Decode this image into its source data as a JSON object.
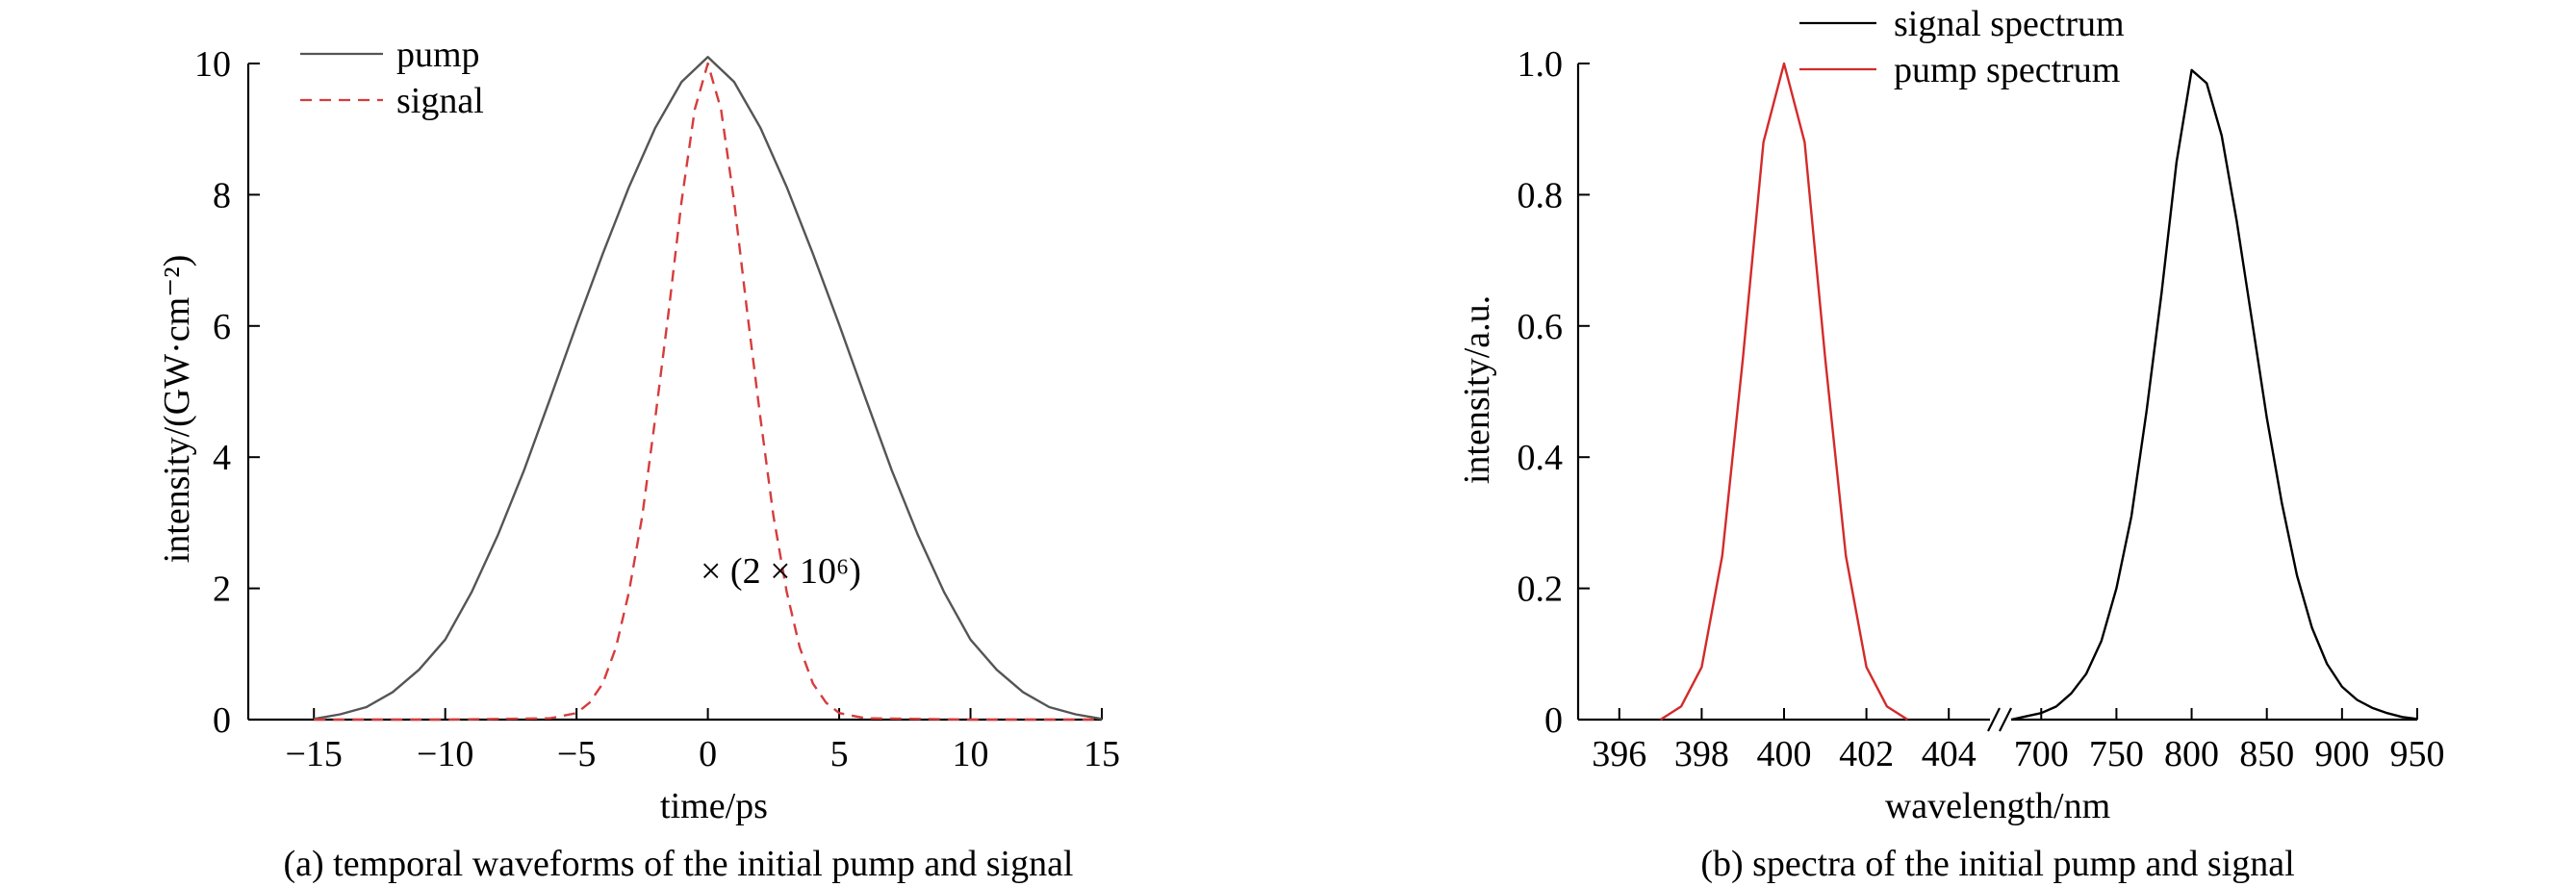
{
  "chart_data": [
    {
      "type": "line",
      "caption": "(a) temporal waveforms of the initial pump and signal",
      "xlabel": "time/ps",
      "ylabel": "intensity/(GW·cm⁻²)",
      "xlim": [
        -17.5,
        15
      ],
      "ylim": [
        0,
        10
      ],
      "xticks": [
        -15,
        -10,
        -5,
        0,
        5,
        10,
        15
      ],
      "xtick_labels": [
        "−15",
        "−10",
        "−5",
        "0",
        "5",
        "10",
        "15"
      ],
      "yticks": [
        0,
        2,
        4,
        6,
        8,
        10
      ],
      "ytick_labels": [
        "0",
        "2",
        "4",
        "6",
        "8",
        "10"
      ],
      "legend_position": "top-left",
      "annotation": "× (2 × 10⁶)",
      "series": [
        {
          "name": "pump",
          "color": "#555555",
          "style": "solid",
          "x": [
            -15,
            -14,
            -13,
            -12,
            -11,
            -10,
            -9,
            -8,
            -7,
            -6,
            -5,
            -4,
            -3,
            -2,
            -1,
            0,
            1,
            2,
            3,
            4,
            5,
            6,
            7,
            8,
            9,
            10,
            11,
            12,
            13,
            14,
            15
          ],
          "y": [
            0.01,
            0.08,
            0.19,
            0.42,
            0.76,
            1.22,
            1.94,
            2.81,
            3.8,
            4.9,
            6.02,
            7.1,
            8.12,
            9.02,
            9.72,
            10.1,
            9.72,
            9.02,
            8.12,
            7.1,
            6.02,
            4.9,
            3.8,
            2.81,
            1.94,
            1.22,
            0.76,
            0.42,
            0.19,
            0.08,
            0.01
          ]
        },
        {
          "name": "signal",
          "color": "#d63c3c",
          "style": "dashed",
          "x": [
            -15,
            -10,
            -6,
            -5,
            -4.5,
            -4,
            -3.5,
            -3,
            -2.5,
            -2,
            -1.5,
            -1,
            -0.5,
            0,
            0.5,
            1,
            1.5,
            2,
            2.5,
            3,
            3.5,
            4,
            4.5,
            5,
            6,
            10,
            15
          ],
          "y": [
            0,
            0,
            0.02,
            0.1,
            0.26,
            0.55,
            1.1,
            1.95,
            3.1,
            4.6,
            6.2,
            7.9,
            9.3,
            10.0,
            9.3,
            7.9,
            6.2,
            4.6,
            3.1,
            1.95,
            1.1,
            0.55,
            0.26,
            0.1,
            0.02,
            0,
            0
          ]
        }
      ]
    },
    {
      "type": "line",
      "caption": "(b) spectra of the initial pump and signal",
      "xlabel": "wavelength/nm",
      "ylabel": "intensity/a.u.",
      "broken_x_axis": true,
      "segments": [
        {
          "xlim": [
            395,
            405
          ],
          "xticks": [
            396,
            398,
            400,
            402,
            404
          ],
          "xtick_labels": [
            "396",
            "398",
            "400",
            "402",
            "404"
          ]
        },
        {
          "xlim": [
            680,
            950
          ],
          "xticks": [
            700,
            750,
            800,
            850,
            900,
            950
          ],
          "xtick_labels": [
            "700",
            "750",
            "800",
            "850",
            "900",
            "950"
          ]
        }
      ],
      "ylim": [
        0,
        1.0
      ],
      "yticks": [
        0,
        0.2,
        0.4,
        0.6,
        0.8,
        1.0
      ],
      "ytick_labels": [
        "0",
        "0.2",
        "0.4",
        "0.6",
        "0.8",
        "1.0"
      ],
      "legend_position": "top-center",
      "series": [
        {
          "name": "signal spectrum",
          "color": "#000000",
          "segment": 1,
          "x": [
            680,
            690,
            700,
            710,
            720,
            730,
            740,
            750,
            760,
            770,
            780,
            790,
            800,
            810,
            820,
            830,
            840,
            850,
            860,
            870,
            880,
            890,
            900,
            910,
            920,
            930,
            940,
            950
          ],
          "y": [
            0.0,
            0.005,
            0.01,
            0.02,
            0.04,
            0.07,
            0.12,
            0.2,
            0.31,
            0.47,
            0.65,
            0.85,
            0.99,
            0.97,
            0.89,
            0.76,
            0.61,
            0.46,
            0.33,
            0.22,
            0.14,
            0.085,
            0.05,
            0.03,
            0.018,
            0.01,
            0.004,
            0.001
          ]
        },
        {
          "name": "pump spectrum",
          "color": "#d42a2a",
          "segment": 0,
          "x": [
            397.0,
            397.5,
            398.0,
            398.5,
            399.0,
            399.5,
            400.0,
            400.5,
            401.0,
            401.5,
            402.0,
            402.5,
            403.0
          ],
          "y": [
            0.0,
            0.02,
            0.08,
            0.25,
            0.55,
            0.88,
            1.0,
            0.88,
            0.55,
            0.25,
            0.08,
            0.02,
            0.0
          ]
        }
      ]
    }
  ]
}
